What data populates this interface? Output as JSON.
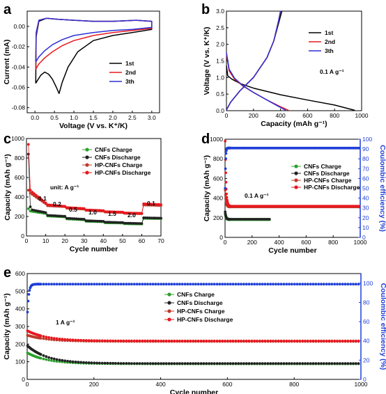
{
  "chart_data": [
    {
      "id": "a",
      "type": "line",
      "panel_label": "a",
      "xlabel": "Voltage (V vs. K⁺/K)",
      "ylabel": "Current (mA)",
      "xlim": [
        -0.2,
        3.2
      ],
      "ylim": [
        -0.085,
        0.015
      ],
      "xticks": [
        0.0,
        0.5,
        1.0,
        1.5,
        2.0,
        2.5,
        3.0
      ],
      "xtick_labels": [
        "0.0",
        "0.5",
        "1.0",
        "1.5",
        "2.0",
        "2.5",
        "3.0"
      ],
      "yticks": [
        0.0,
        -0.02,
        -0.04,
        -0.06,
        -0.08
      ],
      "ytick_labels": [
        "0.00",
        "-0.02",
        "-0.04",
        "-0.06",
        "-0.08"
      ],
      "legend_position": "center-right",
      "series": [
        {
          "name": "1st",
          "color": "#000000",
          "x": [
            0.02,
            0.05,
            0.15,
            0.25,
            0.35,
            0.45,
            0.55,
            0.62,
            0.7,
            0.85,
            1.1,
            1.5,
            2.0,
            2.5,
            3.0,
            3.0,
            2.6,
            2.0,
            1.5,
            1.0,
            0.6,
            0.3,
            0.1,
            0.03,
            0.02
          ],
          "y": [
            -0.056,
            -0.054,
            -0.048,
            -0.045,
            -0.047,
            -0.052,
            -0.06,
            -0.066,
            -0.055,
            -0.04,
            -0.025,
            -0.014,
            -0.009,
            -0.006,
            -0.003,
            0.005,
            0.006,
            0.005,
            0.005,
            0.006,
            0.007,
            0.008,
            0.005,
            -0.01,
            -0.056
          ]
        },
        {
          "name": "2nd",
          "color": "#e8181e",
          "x": [
            0.02,
            0.1,
            0.25,
            0.45,
            0.7,
            1.0,
            1.5,
            2.0,
            2.5,
            3.0,
            3.0,
            2.6,
            2.0,
            1.5,
            1.0,
            0.6,
            0.3,
            0.1,
            0.03,
            0.02
          ],
          "y": [
            -0.042,
            -0.037,
            -0.031,
            -0.025,
            -0.019,
            -0.014,
            -0.009,
            -0.006,
            -0.004,
            -0.002,
            0.005,
            0.006,
            0.005,
            0.005,
            0.006,
            0.007,
            0.008,
            0.006,
            -0.008,
            -0.042
          ]
        },
        {
          "name": "3th",
          "color": "#2c2fd6",
          "x": [
            0.02,
            0.1,
            0.25,
            0.45,
            0.7,
            1.0,
            1.5,
            2.0,
            2.5,
            3.0,
            3.0,
            2.6,
            2.0,
            1.5,
            1.0,
            0.6,
            0.3,
            0.1,
            0.03,
            0.02
          ],
          "y": [
            -0.035,
            -0.03,
            -0.024,
            -0.018,
            -0.013,
            -0.009,
            -0.006,
            -0.004,
            -0.003,
            -0.001,
            0.005,
            0.006,
            0.005,
            0.005,
            0.006,
            0.007,
            0.008,
            0.006,
            -0.006,
            -0.035
          ]
        }
      ]
    },
    {
      "id": "b",
      "type": "line",
      "panel_label": "b",
      "xlabel": "Capacity (mAh g⁻¹)",
      "ylabel": "Voltage (V vs. K⁺/K)",
      "xlim": [
        0,
        1000
      ],
      "ylim": [
        0,
        3.0
      ],
      "xticks": [
        0,
        200,
        400,
        600,
        800,
        1000
      ],
      "xtick_labels": [
        "0",
        "200",
        "400",
        "600",
        "800",
        "1000"
      ],
      "yticks": [
        0,
        0.5,
        1.0,
        1.5,
        2.0,
        2.5,
        3.0
      ],
      "ytick_labels": [
        "0.0",
        "0.5",
        "1.0",
        "1.5",
        "2.0",
        "2.5",
        "3.0"
      ],
      "legend_position": "right",
      "annotations": [
        "0.1 A g⁻¹"
      ],
      "series": [
        {
          "name": "1st",
          "color": "#000000",
          "segments": [
            {
              "x": [
                0,
                10,
                40,
                100,
                200,
                400,
                600,
                800,
                950
              ],
              "y": [
                1.35,
                1.05,
                0.95,
                0.82,
                0.68,
                0.48,
                0.32,
                0.17,
                0.01
              ]
            },
            {
              "x": [
                0,
                30,
                100,
                200,
                300,
                350,
                390,
                410
              ],
              "y": [
                0.02,
                0.25,
                0.6,
                1.0,
                1.6,
                2.1,
                2.7,
                3.0
              ]
            }
          ]
        },
        {
          "name": "2nd",
          "color": "#e8181e",
          "segments": [
            {
              "x": [
                0,
                20,
                60,
                120,
                200,
                300,
                400,
                460
              ],
              "y": [
                1.7,
                1.2,
                0.95,
                0.75,
                0.55,
                0.32,
                0.12,
                0.01
              ]
            },
            {
              "x": [
                0,
                30,
                100,
                200,
                300,
                350,
                385,
                400
              ],
              "y": [
                0.02,
                0.25,
                0.6,
                1.0,
                1.6,
                2.1,
                2.7,
                3.0
              ]
            }
          ]
        },
        {
          "name": "3th",
          "color": "#2c2fd6",
          "segments": [
            {
              "x": [
                0,
                20,
                60,
                120,
                200,
                300,
                380,
                440
              ],
              "y": [
                1.75,
                1.25,
                0.98,
                0.76,
                0.55,
                0.32,
                0.14,
                0.01
              ]
            },
            {
              "x": [
                0,
                30,
                100,
                200,
                300,
                350,
                385,
                400
              ],
              "y": [
                0.02,
                0.25,
                0.6,
                1.0,
                1.6,
                2.1,
                2.7,
                3.0
              ]
            }
          ]
        }
      ]
    },
    {
      "id": "c",
      "type": "scatter",
      "panel_label": "c",
      "xlabel": "Cycle number",
      "ylabel": "Capacity (mAh g⁻¹)",
      "xlim": [
        0,
        70
      ],
      "ylim": [
        0,
        1000
      ],
      "xticks": [
        0,
        10,
        20,
        30,
        40,
        50,
        60,
        70
      ],
      "xtick_labels": [
        "0",
        "10",
        "20",
        "30",
        "40",
        "50",
        "60",
        "70"
      ],
      "yticks": [
        0,
        200,
        400,
        600,
        800,
        1000
      ],
      "ytick_labels": [
        "0",
        "200",
        "400",
        "600",
        "800",
        "1000"
      ],
      "legend_position": "top-right",
      "annotations": [
        "unit: A g⁻¹",
        "0.1",
        "0.2",
        "0.5",
        "1.0",
        "1.5",
        "2.0",
        "0.1"
      ],
      "rates": [
        0.1,
        0.2,
        0.5,
        1.0,
        1.5,
        2.0,
        0.1
      ],
      "series": [
        {
          "name": "CNFs Charge",
          "color": "#2ca02c",
          "first": [
            280
          ],
          "segments": [
            [
              2,
              10,
              255,
              230
            ],
            [
              11,
              20,
              205,
              195
            ],
            [
              21,
              30,
              175,
              165
            ],
            [
              31,
              40,
              150,
              145
            ],
            [
              41,
              50,
              135,
              132
            ],
            [
              51,
              60,
              125,
              122
            ],
            [
              61,
              70,
              180,
              178
            ]
          ]
        },
        {
          "name": "CNFs Discharge",
          "color": "#222222",
          "first": [
            840,
            300
          ],
          "segments": [
            [
              3,
              10,
              268,
              240
            ],
            [
              11,
              20,
              212,
              202
            ],
            [
              21,
              30,
              182,
              172
            ],
            [
              31,
              40,
              157,
              151
            ],
            [
              41,
              50,
              142,
              138
            ],
            [
              51,
              60,
              132,
              128
            ],
            [
              61,
              70,
              187,
              183
            ]
          ]
        },
        {
          "name": "HP-CNFs Charge",
          "color": "#c0392b",
          "first": [
            470
          ],
          "segments": [
            [
              2,
              10,
              440,
              330
            ],
            [
              11,
              20,
              310,
              300
            ],
            [
              21,
              30,
              285,
              275
            ],
            [
              31,
              40,
              262,
              255
            ],
            [
              41,
              50,
              245,
              240
            ],
            [
              51,
              60,
              232,
              228
            ],
            [
              61,
              70,
              318,
              312
            ]
          ]
        },
        {
          "name": "HP-CNFs Discharge",
          "color": "#e8181e",
          "first": [
            940,
            470
          ],
          "segments": [
            [
              3,
              10,
              450,
              340
            ],
            [
              11,
              20,
              320,
              305
            ],
            [
              21,
              30,
              292,
              282
            ],
            [
              31,
              40,
              268,
              261
            ],
            [
              41,
              50,
              250,
              245
            ],
            [
              51,
              60,
              237,
              233
            ],
            [
              61,
              70,
              330,
              322
            ]
          ]
        }
      ]
    },
    {
      "id": "d",
      "type": "scatter",
      "panel_label": "d",
      "xlabel": "Cycle number",
      "ylabel": "Capacity (mAh g⁻¹)",
      "y2label": "Coulombic efficiency (%)",
      "xlim": [
        0,
        1000
      ],
      "ylim": [
        0,
        1000
      ],
      "y2lim": [
        0,
        100
      ],
      "xticks": [
        0,
        200,
        400,
        600,
        800,
        1000
      ],
      "xtick_labels": [
        "0",
        "200",
        "400",
        "600",
        "800",
        "1000"
      ],
      "yticks": [
        0,
        200,
        400,
        600,
        800,
        1000
      ],
      "ytick_labels": [
        "0",
        "200",
        "400",
        "600",
        "800",
        "1000"
      ],
      "y2ticks": [
        0,
        10,
        20,
        30,
        40,
        50,
        60,
        70,
        80,
        90,
        100
      ],
      "y2tick_labels": [
        "0",
        "10",
        "20",
        "30",
        "40",
        "50",
        "60",
        "70",
        "80",
        "90",
        "100"
      ],
      "legend_position": "right",
      "annotations": [
        "0.1 A g⁻¹"
      ],
      "series": [
        {
          "name": "CNFs Charge",
          "color": "#2ca02c",
          "first": 240,
          "plateau": 180,
          "end_cycle": 330
        },
        {
          "name": "CNFs Discharge",
          "color": "#222222",
          "first": 260,
          "plateau": 185,
          "end_cycle": 330
        },
        {
          "name": "HP-CNFs Charge",
          "color": "#c0392b",
          "first": 480,
          "plateau": 310,
          "end_cycle": 1000
        },
        {
          "name": "HP-CNFs Discharge",
          "color": "#e8181e",
          "first": 980,
          "plateau": 318,
          "end_cycle": 1000
        },
        {
          "name": "Coulombic efficiency",
          "color": "#1f3fd8",
          "axis": "right",
          "first": 50,
          "plateau": 91,
          "end_cycle": 1000
        }
      ]
    },
    {
      "id": "e",
      "type": "scatter",
      "panel_label": "e",
      "xlabel": "Cycle number",
      "ylabel": "Capacity (mAh g⁻¹)",
      "y2label": "Coulombic efficiency (%)",
      "xlim": [
        0,
        1000
      ],
      "ylim": [
        0,
        600
      ],
      "y2lim": [
        0,
        110
      ],
      "xticks": [
        0,
        200,
        400,
        600,
        800,
        1000
      ],
      "xtick_labels": [
        "0",
        "200",
        "400",
        "600",
        "800",
        "1000"
      ],
      "yticks": [
        0,
        100,
        200,
        300,
        400,
        500,
        600
      ],
      "ytick_labels": [
        "0",
        "100",
        "200",
        "300",
        "400",
        "500",
        "600"
      ],
      "y2ticks": [
        0,
        20,
        40,
        60,
        80,
        100
      ],
      "y2tick_labels": [
        "0",
        "20",
        "40",
        "60",
        "80",
        "100"
      ],
      "legend_position": "center",
      "annotations": [
        "1 A g⁻¹"
      ],
      "series": [
        {
          "name": "CNFs Charge",
          "color": "#2ca02c",
          "first": 150,
          "plateau": 88,
          "end_cycle": 1000
        },
        {
          "name": "CNFs Discharge",
          "color": "#222222",
          "first": 190,
          "plateau": 90,
          "end_cycle": 1000
        },
        {
          "name": "HP-CNFs Charge",
          "color": "#c0392b",
          "first": 250,
          "plateau": 215,
          "end_cycle": 1000
        },
        {
          "name": "HP-CNFs Discharge",
          "color": "#e8181e",
          "first": 275,
          "plateau": 218,
          "end_cycle": 1000
        },
        {
          "name": "Coulombic efficiency",
          "color": "#1f3fd8",
          "axis": "right",
          "first": 70,
          "plateau": 99,
          "end_cycle": 1000
        }
      ]
    }
  ]
}
